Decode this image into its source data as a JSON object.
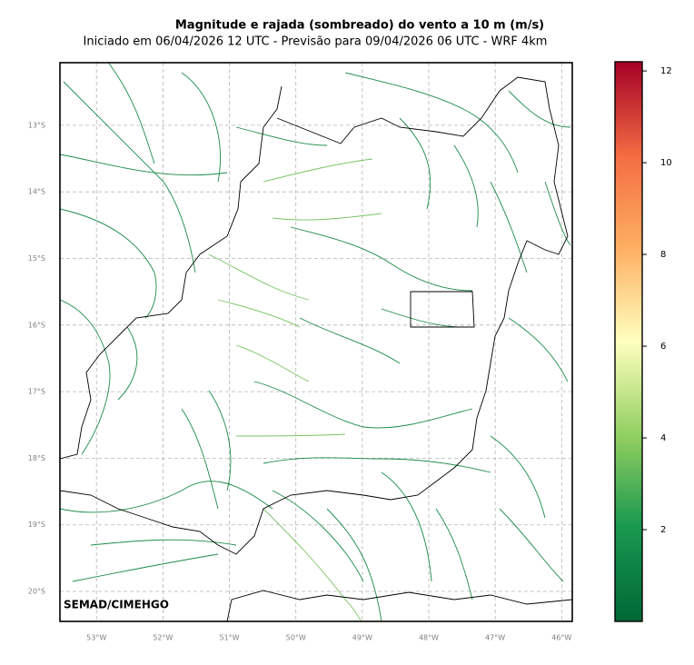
{
  "map": {
    "title": "Magnitude e rajada (sombreado) do vento a 10 m (m/s)",
    "subtitle": "Iniciado em 06/04/2026 12 UTC - Previsão para 09/04/2026 06 UTC - WRF 4km",
    "watermark": "SEMAD/CIMEHGO",
    "xlim": [
      -53.55,
      -45.84
    ],
    "ylim": [
      -20.45,
      -12.06
    ],
    "xticks": [
      {
        "value": -53,
        "label": "53°W"
      },
      {
        "value": -52,
        "label": "52°W"
      },
      {
        "value": -51,
        "label": "51°W"
      },
      {
        "value": -50,
        "label": "50°W"
      },
      {
        "value": -49,
        "label": "49°W"
      },
      {
        "value": -48,
        "label": "48°W"
      },
      {
        "value": -47,
        "label": "47°W"
      },
      {
        "value": -46,
        "label": "46°W"
      }
    ],
    "yticks": [
      {
        "value": -13,
        "label": "13°S"
      },
      {
        "value": -14,
        "label": "14°S"
      },
      {
        "value": -15,
        "label": "15°S"
      },
      {
        "value": -16,
        "label": "16°S"
      },
      {
        "value": -17,
        "label": "17°S"
      },
      {
        "value": -18,
        "label": "18°S"
      },
      {
        "value": -19,
        "label": "19°S"
      },
      {
        "value": -20,
        "label": "20°S"
      }
    ],
    "grid": true,
    "colorbar": {
      "lim": [
        0,
        12.2
      ],
      "ticks": [
        2,
        4,
        6,
        8,
        10,
        12
      ]
    }
  }
}
